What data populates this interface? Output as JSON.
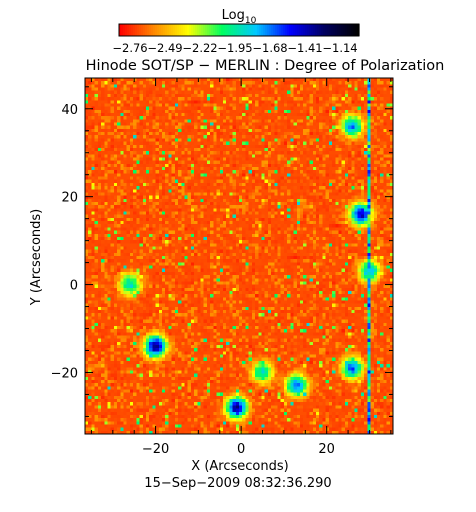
{
  "chart_data": {
    "type": "heatmap",
    "title": "Hinode SOT/SP − MERLIN : Degree of Polarization",
    "colorbar": {
      "label_base": "Log",
      "label_sub": "10",
      "ticks": [
        "−2.76",
        "−2.49",
        "−2.22",
        "−1.95",
        "−1.68",
        "−1.41",
        "−1.14"
      ],
      "range": [
        -2.76,
        -1.14
      ],
      "colormap": [
        "#ff0000",
        "#ff8800",
        "#ffff00",
        "#00ff60",
        "#00c8ff",
        "#0000ff",
        "#000060",
        "#000000"
      ]
    },
    "xlabel": "X (Arcseconds)",
    "ylabel": "Y (Arcseconds)",
    "xticks": [
      "−20",
      "0",
      "20"
    ],
    "yticks": [
      "40",
      "20",
      "0",
      "−20"
    ],
    "x_tick_values": [
      -20,
      0,
      20
    ],
    "y_tick_values": [
      40,
      20,
      0,
      -20
    ],
    "xlim": [
      -36.5,
      35.5
    ],
    "ylim": [
      -34,
      47
    ],
    "background_value": -2.7,
    "features": [
      {
        "x": -20,
        "y": -14,
        "peak": -1.4
      },
      {
        "x": -1,
        "y": -28,
        "peak": -1.45
      },
      {
        "x": 28,
        "y": 16,
        "peak": -1.5
      },
      {
        "x": 13,
        "y": -23,
        "peak": -1.7
      },
      {
        "x": 26,
        "y": -19,
        "peak": -1.7
      },
      {
        "x": 26,
        "y": 36,
        "peak": -1.75
      },
      {
        "x": 30,
        "y": 3,
        "peak": -1.8
      },
      {
        "x": -26,
        "y": 0,
        "peak": -1.9
      },
      {
        "x": 5,
        "y": -20,
        "peak": -1.9
      }
    ],
    "vertical_artifact_x": 30,
    "timestamp": "15−Sep−2009 08:32:36.290",
    "grid": false,
    "legend": "none"
  }
}
